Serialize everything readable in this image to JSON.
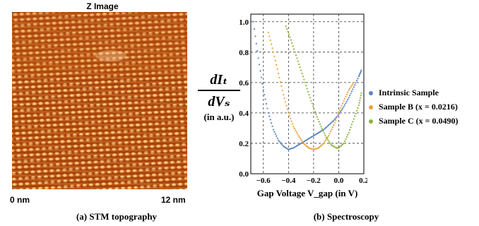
{
  "figure": {
    "stm": {
      "title": "Z Image",
      "scale_start": "0 nm",
      "scale_end": "12 nm",
      "caption": "(a) STM topography"
    },
    "spectroscopy": {
      "caption": "(b) Spectroscopy",
      "ylabel_numerator": "dIₜ",
      "ylabel_denominator": "dVₛ",
      "ylabel_unit": "(in a.u.)",
      "xlabel": "Gap Voltage V_gap (in V)"
    }
  },
  "chart_data": {
    "type": "scatter",
    "xlabel": "Gap Voltage V_gap (in V)",
    "ylabel": "dIt/dVs (in a.u.)",
    "xlim": [
      -0.7,
      0.2
    ],
    "ylim": [
      0.0,
      1.05
    ],
    "x_ticks": [
      -0.6,
      -0.4,
      -0.2,
      0.0,
      0.2
    ],
    "x_tick_labels": [
      "−0.6",
      "−0.4",
      "−0.2",
      "0.0",
      "0.2"
    ],
    "y_ticks": [
      0.0,
      0.2,
      0.4,
      0.6,
      0.8,
      1.0
    ],
    "y_tick_labels": [
      "0.0",
      "0.2",
      "0.4",
      "0.6",
      "0.8",
      "1.0"
    ],
    "grid": true,
    "legend_position": "right",
    "series": [
      {
        "name": "Intrinsic Sample",
        "color": "#5b85c2",
        "x": [
          -0.68,
          -0.64,
          -0.6,
          -0.56,
          -0.52,
          -0.48,
          -0.44,
          -0.4,
          -0.36,
          -0.32,
          -0.28,
          -0.24,
          -0.2,
          -0.16,
          -0.12,
          -0.08,
          -0.04,
          0.0,
          0.04,
          0.08,
          0.12,
          0.16,
          0.18
        ],
        "y": [
          1.0,
          0.76,
          0.55,
          0.4,
          0.29,
          0.22,
          0.18,
          0.16,
          0.17,
          0.19,
          0.21,
          0.23,
          0.25,
          0.27,
          0.29,
          0.32,
          0.35,
          0.39,
          0.44,
          0.5,
          0.57,
          0.64,
          0.68
        ]
      },
      {
        "name": "Sample B (x = 0.0216)",
        "color": "#e8a33a",
        "x": [
          -0.56,
          -0.52,
          -0.48,
          -0.44,
          -0.4,
          -0.36,
          -0.32,
          -0.28,
          -0.24,
          -0.2,
          -0.16,
          -0.12,
          -0.08,
          -0.04,
          0.0,
          0.04,
          0.08,
          0.12
        ],
        "y": [
          0.93,
          0.8,
          0.66,
          0.52,
          0.4,
          0.31,
          0.25,
          0.2,
          0.17,
          0.16,
          0.17,
          0.2,
          0.25,
          0.32,
          0.4,
          0.48,
          0.55,
          0.6
        ]
      },
      {
        "name": "Sample C (x = 0.0490)",
        "color": "#8cb43c",
        "x": [
          -0.42,
          -0.38,
          -0.34,
          -0.3,
          -0.26,
          -0.22,
          -0.18,
          -0.14,
          -0.1,
          -0.06,
          -0.02,
          0.0,
          0.04,
          0.08,
          0.12,
          0.16,
          0.18
        ],
        "y": [
          0.97,
          0.88,
          0.78,
          0.68,
          0.58,
          0.48,
          0.39,
          0.31,
          0.24,
          0.19,
          0.17,
          0.17,
          0.2,
          0.27,
          0.36,
          0.45,
          0.53
        ]
      }
    ]
  }
}
